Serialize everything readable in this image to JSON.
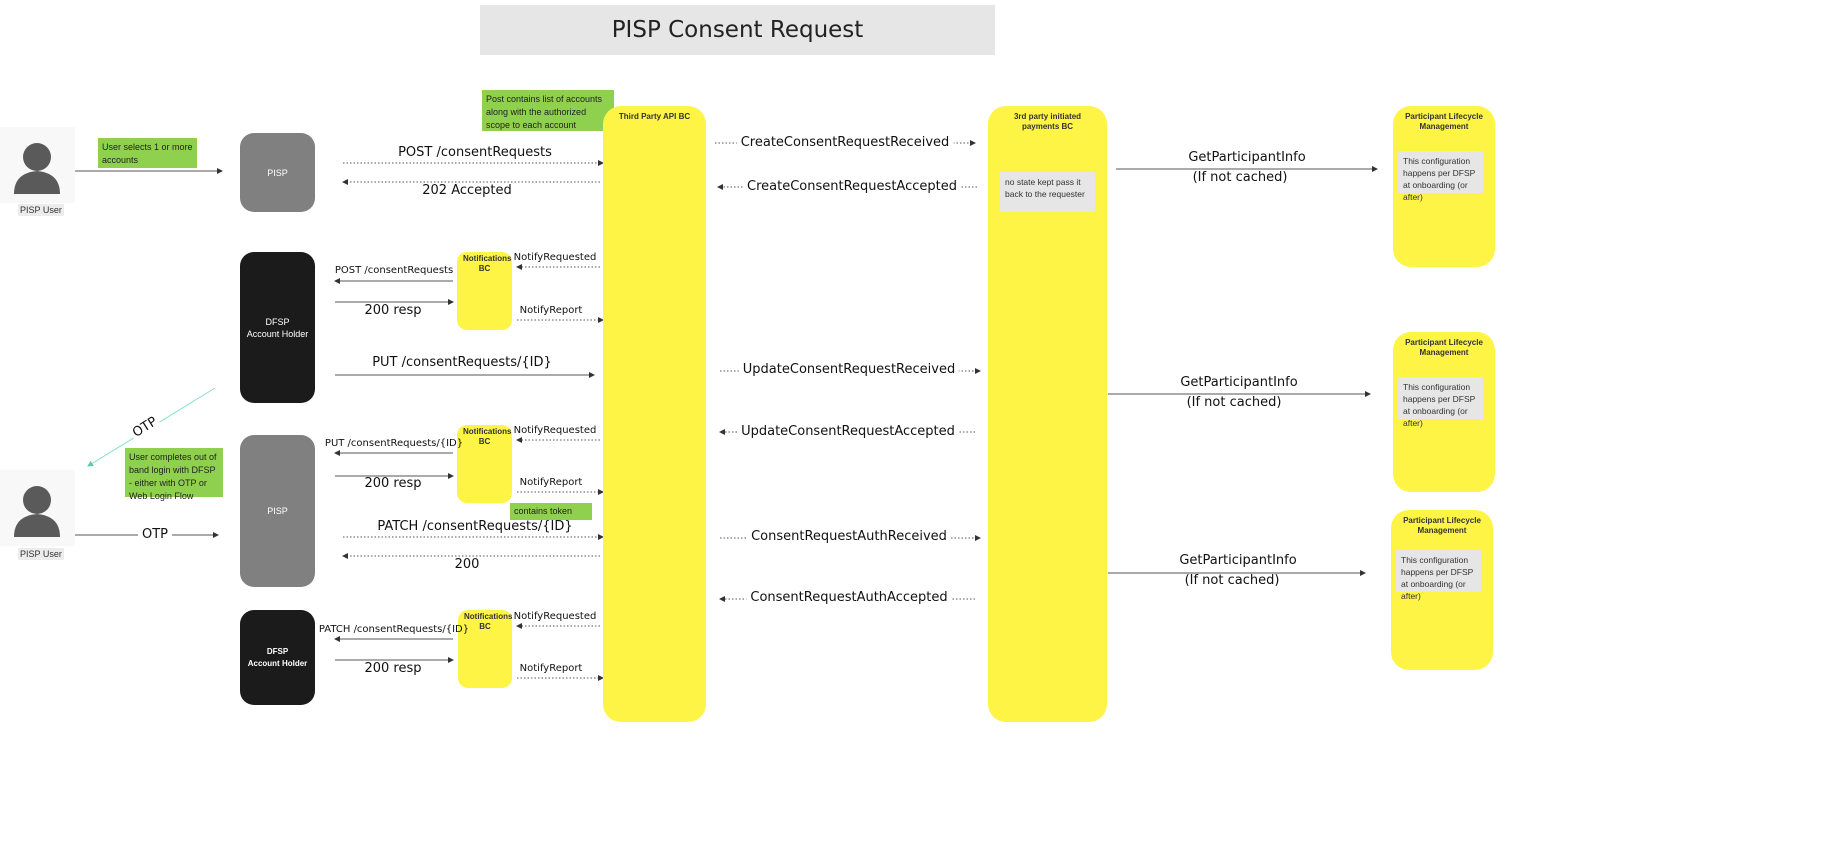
{
  "title": "PISP Consent Request",
  "colors": {
    "yellow": "#fef445",
    "green": "#8fd14f",
    "pisp": "#808080",
    "dfsp": "#1b1b1b",
    "otp_line": "#7fe0c8"
  },
  "actors": [
    {
      "label": "PISP User",
      "icon": "user-icon"
    },
    {
      "label": "PISP User",
      "icon": "user-icon"
    }
  ],
  "notes": {
    "user_selects": "User selects 1 or more accounts",
    "post_contains": "Post contains list of accounts along with the authorized scope to each account",
    "user_completes": "User completes out of band login with DFSP - either with OTP or Web Login Flow",
    "contains_token": "contains token",
    "no_state": "no state kept pass it back to the requester",
    "config": "This configuration happens per DFSP at onboarding (or after)"
  },
  "nodes": {
    "pisp": "PISP",
    "dfsp1": "DFSP\nAccount Holder",
    "dfsp2": "DFSP\nAccount Holder",
    "notifications": "Notifications BC",
    "third_party_api": "Third Party API BC",
    "third_party_payments": "3rd party initiated payments BC",
    "participant_lifecycle": "Participant Lifecycle Management"
  },
  "messages": {
    "post": "POST /consentRequests",
    "accepted202": "202 Accepted",
    "create_received": "CreateConsentRequestReceived",
    "create_accepted": "CreateConsentRequestAccepted",
    "get_participant": "GetParticipantInfo",
    "if_not_cached": "(If not cached)",
    "notify_requested": "NotifyRequested",
    "notify_report": "NotifyReport",
    "resp200": "200 resp",
    "put": "PUT /consentRequests/{ID}",
    "update_received": "UpdateConsentRequestReceived",
    "update_accepted": "UpdateConsentRequestAccepted",
    "otp": "OTP",
    "patch": "PATCH /consentRequests/{ID}",
    "ok200": "200",
    "auth_received": "ConsentRequestAuthReceived",
    "auth_accepted": "ConsentRequestAuthAccepted"
  }
}
